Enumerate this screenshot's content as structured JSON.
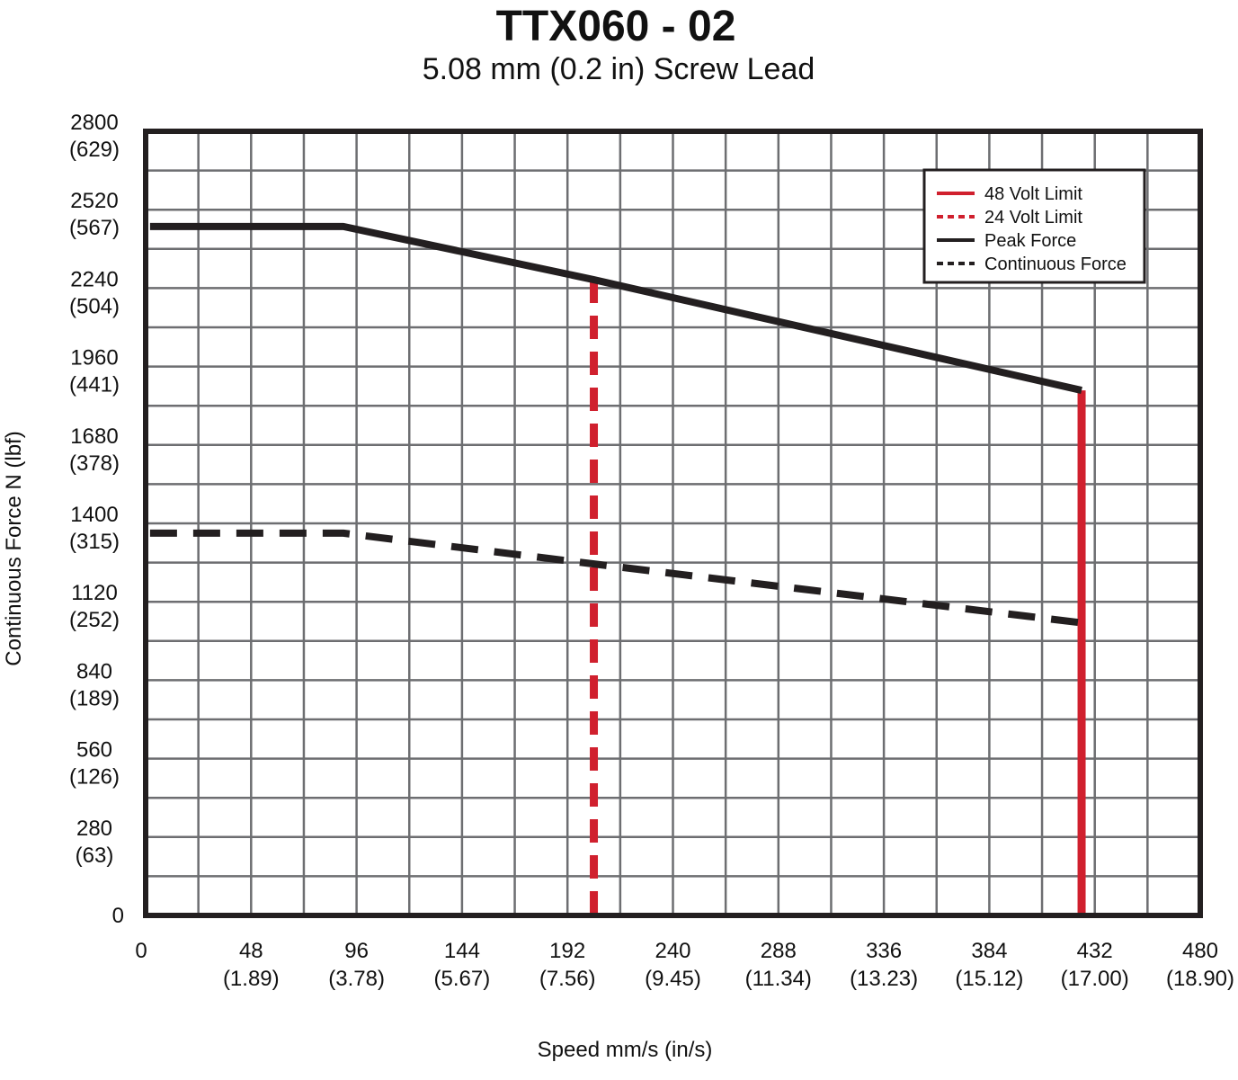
{
  "chart_data": {
    "type": "line",
    "title": "TTX060 - 02",
    "subtitle": "5.08 mm (0.2 in) Screw Lead",
    "xlabel": "Speed mm/s (in/s)",
    "ylabel": "Continuous Force N (lbf)",
    "xlim": [
      0,
      480
    ],
    "ylim": [
      0,
      2800
    ],
    "x_ticks": [
      {
        "value": 0,
        "label": "0",
        "sub": ""
      },
      {
        "value": 48,
        "label": "48",
        "sub": "(1.89)"
      },
      {
        "value": 96,
        "label": "96",
        "sub": "(3.78)"
      },
      {
        "value": 144,
        "label": "144",
        "sub": "(5.67)"
      },
      {
        "value": 192,
        "label": "192",
        "sub": "(7.56)"
      },
      {
        "value": 240,
        "label": "240",
        "sub": "(9.45)"
      },
      {
        "value": 288,
        "label": "288",
        "sub": "(11.34)"
      },
      {
        "value": 336,
        "label": "336",
        "sub": "(13.23)"
      },
      {
        "value": 384,
        "label": "384",
        "sub": "(15.12)"
      },
      {
        "value": 432,
        "label": "432",
        "sub": "(17.00)"
      },
      {
        "value": 480,
        "label": "480",
        "sub": "(18.90)"
      }
    ],
    "y_ticks": [
      {
        "value": 0,
        "label": "0",
        "sub": ""
      },
      {
        "value": 280,
        "label": "280",
        "sub": "(63)"
      },
      {
        "value": 560,
        "label": "560",
        "sub": "(126)"
      },
      {
        "value": 840,
        "label": "840",
        "sub": "(189)"
      },
      {
        "value": 1120,
        "label": "1120",
        "sub": "(252)"
      },
      {
        "value": 1400,
        "label": "1400",
        "sub": "(315)"
      },
      {
        "value": 1680,
        "label": "1680",
        "sub": "(378)"
      },
      {
        "value": 1960,
        "label": "1960",
        "sub": "(441)"
      },
      {
        "value": 2240,
        "label": "2240",
        "sub": "(504)"
      },
      {
        "value": 2520,
        "label": "2520",
        "sub": "(567)"
      },
      {
        "value": 2800,
        "label": "2800",
        "sub": "(629)"
      }
    ],
    "grid": true,
    "grid_step_x": 24,
    "grid_step_y": 140,
    "legend_position": "top-right",
    "series": [
      {
        "name": "48 Volt Limit",
        "style": "solid",
        "color": "#d0202e",
        "points": [
          [
            426,
            1875
          ],
          [
            426,
            0
          ]
        ]
      },
      {
        "name": "24 Volt Limit",
        "style": "dashed",
        "color": "#d0202e",
        "points": [
          [
            204,
            2270
          ],
          [
            204,
            0
          ]
        ]
      },
      {
        "name": "Peak Force",
        "style": "solid",
        "color": "#231f20",
        "points": [
          [
            2,
            2460
          ],
          [
            90,
            2460
          ],
          [
            204,
            2270
          ],
          [
            426,
            1875
          ]
        ]
      },
      {
        "name": "Continuous Force",
        "style": "dashed",
        "color": "#231f20",
        "points": [
          [
            2,
            1365
          ],
          [
            90,
            1365
          ],
          [
            204,
            1255
          ],
          [
            426,
            1045
          ]
        ]
      }
    ]
  }
}
